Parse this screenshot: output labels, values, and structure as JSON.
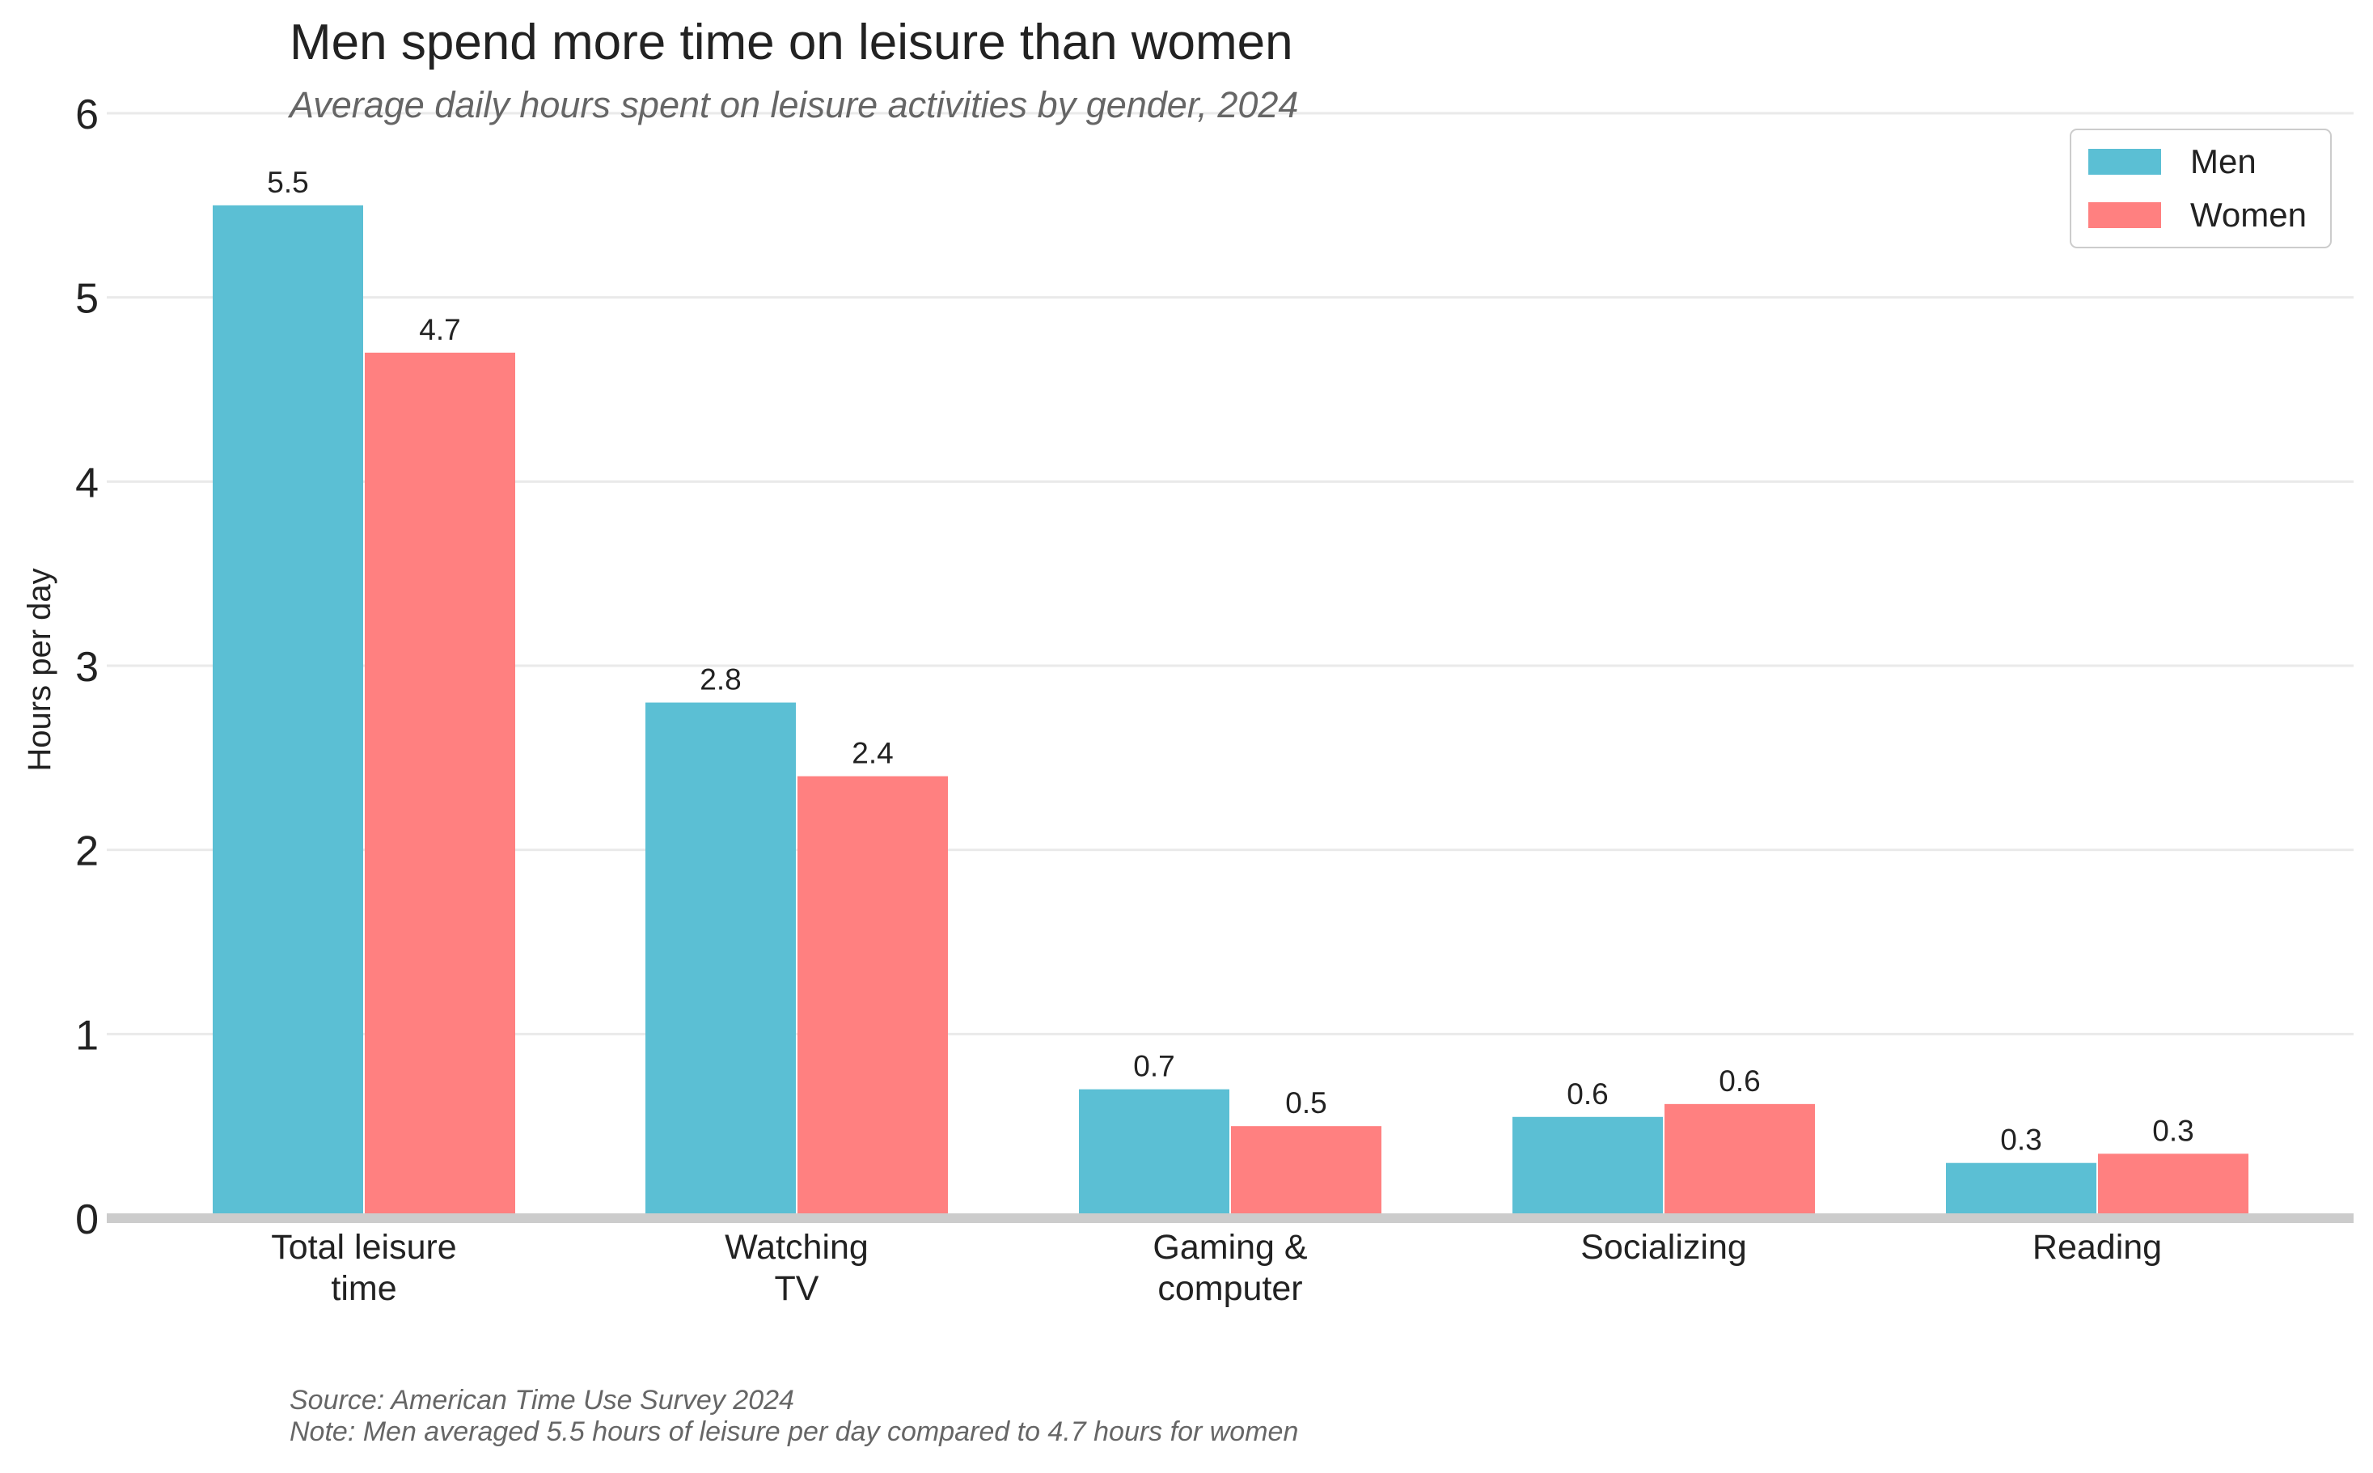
{
  "chart_data": {
    "type": "bar",
    "title": "Men spend more time on leisure than women",
    "subtitle": "Average daily hours spent on leisure activities by gender, 2024",
    "xlabel": "",
    "ylabel": "Hours per day",
    "ylim": [
      0,
      6
    ],
    "yticks": [
      "0",
      "1",
      "2",
      "3",
      "4",
      "5",
      "6"
    ],
    "grid": true,
    "legend_position": "top-right",
    "categories": [
      [
        "Total leisure",
        "time"
      ],
      [
        "Watching",
        "TV"
      ],
      [
        "Gaming &",
        "computer"
      ],
      [
        "Socializing"
      ],
      [
        "Reading"
      ]
    ],
    "series": [
      {
        "name": "Men",
        "color": "#5bbfd4",
        "values": [
          5.5,
          2.8,
          0.7,
          0.55,
          0.3
        ],
        "labels": [
          "5.5",
          "2.8",
          "0.7",
          "0.6",
          "0.3"
        ]
      },
      {
        "name": "Women",
        "color": "#ff8080",
        "values": [
          4.7,
          2.4,
          0.5,
          0.62,
          0.35
        ],
        "labels": [
          "4.7",
          "2.4",
          "0.5",
          "0.6",
          "0.3"
        ]
      }
    ],
    "footer": {
      "source": "Source: American Time Use Survey 2024",
      "note": "Note: Men averaged 5.5 hours of leisure per day compared to 4.7 hours for women"
    }
  }
}
